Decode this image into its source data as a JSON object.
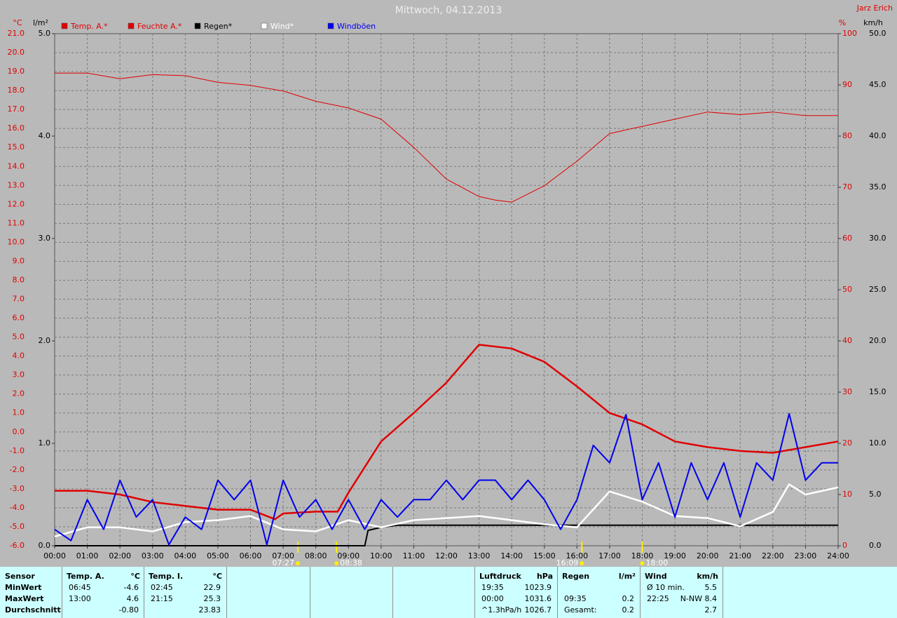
{
  "chart_data": {
    "type": "line",
    "title": "Mittwoch, 04.12.2013",
    "author": "Jarz Erich",
    "y_label": "°C",
    "y2_label": "l/m²",
    "y3_label": "%",
    "y4_label": "km/h",
    "grid": true,
    "xlim": [
      0,
      24
    ],
    "xticks": [
      {
        "value": 0,
        "label": "00:00"
      },
      {
        "value": 1,
        "label": "01:00"
      },
      {
        "value": 2,
        "label": "02:00"
      },
      {
        "value": 3,
        "label": "03:00"
      },
      {
        "value": 4,
        "label": "04:00"
      },
      {
        "value": 5,
        "label": "05:00"
      },
      {
        "value": 6,
        "label": "06:00"
      },
      {
        "value": 7,
        "label": "07:00"
      },
      {
        "value": 8,
        "label": "08:00"
      },
      {
        "value": 9,
        "label": "09:00"
      },
      {
        "value": 10,
        "label": "10:00"
      },
      {
        "value": 11,
        "label": "11:00"
      },
      {
        "value": 12,
        "label": "12:00"
      },
      {
        "value": 13,
        "label": "13:00"
      },
      {
        "value": 14,
        "label": "14:00"
      },
      {
        "value": 15,
        "label": "15:00"
      },
      {
        "value": 16,
        "label": "16:00"
      },
      {
        "value": 17,
        "label": "17:00"
      },
      {
        "value": 18,
        "label": "18:00"
      },
      {
        "value": 19,
        "label": "19:00"
      },
      {
        "value": 20,
        "label": "20:00"
      },
      {
        "value": 21,
        "label": "21:00"
      },
      {
        "value": 22,
        "label": "22:00"
      },
      {
        "value": 23,
        "label": "23:00"
      },
      {
        "value": 24,
        "label": "24:00"
      }
    ],
    "ylim": [
      -6,
      21
    ],
    "yticks": [
      {
        "value": -6,
        "label": "-6.0"
      },
      {
        "value": -5,
        "label": "-5.0"
      },
      {
        "value": -4,
        "label": "-4.0"
      },
      {
        "value": -3,
        "label": "-3.0"
      },
      {
        "value": -2,
        "label": "-2.0"
      },
      {
        "value": -1,
        "label": "-1.0"
      },
      {
        "value": 0,
        "label": "0.0"
      },
      {
        "value": 1,
        "label": "1.0"
      },
      {
        "value": 2,
        "label": "2.0"
      },
      {
        "value": 3,
        "label": "3.0"
      },
      {
        "value": 4,
        "label": "4.0"
      },
      {
        "value": 5,
        "label": "5.0"
      },
      {
        "value": 6,
        "label": "6.0"
      },
      {
        "value": 7,
        "label": "7.0"
      },
      {
        "value": 8,
        "label": "8.0"
      },
      {
        "value": 9,
        "label": "9.0"
      },
      {
        "value": 10,
        "label": "10.0"
      },
      {
        "value": 11,
        "label": "11.0"
      },
      {
        "value": 12,
        "label": "12.0"
      },
      {
        "value": 13,
        "label": "13.0"
      },
      {
        "value": 14,
        "label": "14.0"
      },
      {
        "value": 15,
        "label": "15.0"
      },
      {
        "value": 16,
        "label": "16.0"
      },
      {
        "value": 17,
        "label": "17.0"
      },
      {
        "value": 18,
        "label": "18.0"
      },
      {
        "value": 19,
        "label": "19.0"
      },
      {
        "value": 20,
        "label": "20.0"
      },
      {
        "value": 21,
        "label": "21.0"
      }
    ],
    "y2lim": [
      0,
      5
    ],
    "y2ticks": [
      {
        "value": 0,
        "label": "0.0"
      },
      {
        "value": 1,
        "label": "1.0"
      },
      {
        "value": 2,
        "label": "2.0"
      },
      {
        "value": 3,
        "label": "3.0"
      },
      {
        "value": 4,
        "label": "4.0"
      },
      {
        "value": 5,
        "label": "5.0"
      }
    ],
    "y3lim": [
      0,
      100
    ],
    "y3ticks": [
      0,
      10,
      20,
      30,
      40,
      50,
      60,
      70,
      80,
      90,
      100
    ],
    "y4lim": [
      0,
      50
    ],
    "y4ticks": [
      {
        "value": 0,
        "label": "0.0"
      },
      {
        "value": 5,
        "label": "5.0"
      },
      {
        "value": 10,
        "label": "10.0"
      },
      {
        "value": 15,
        "label": "15.0"
      },
      {
        "value": 20,
        "label": "20.0"
      },
      {
        "value": 25,
        "label": "25.0"
      },
      {
        "value": 30,
        "label": "30.0"
      },
      {
        "value": 35,
        "label": "35.0"
      },
      {
        "value": 40,
        "label": "40.0"
      },
      {
        "value": 45,
        "label": "45.0"
      },
      {
        "value": 50,
        "label": "50.0"
      }
    ],
    "series": [
      {
        "name": "Temp. A.*",
        "color": "#e00000",
        "axis": "y",
        "x": [
          0,
          1,
          2,
          3,
          4,
          5,
          6,
          6.75,
          7,
          8,
          8.67,
          9,
          10,
          11,
          12,
          13,
          14,
          15,
          16,
          17,
          18,
          19,
          20,
          21,
          22,
          23,
          24
        ],
        "values": [
          -3.1,
          -3.1,
          -3.3,
          -3.7,
          -3.9,
          -4.1,
          -4.1,
          -4.6,
          -4.3,
          -4.2,
          -4.2,
          -3.2,
          -0.5,
          1.0,
          2.6,
          4.6,
          4.4,
          3.7,
          2.4,
          1.0,
          0.4,
          -0.5,
          -0.8,
          -1.0,
          -1.1,
          -0.8,
          -0.5
        ]
      },
      {
        "name": "Feuchte A.*",
        "color": "#e00000",
        "axis": "y3",
        "x": [
          0,
          1,
          2,
          3,
          4,
          5,
          6,
          7,
          8,
          9,
          10,
          11,
          12,
          13,
          13.5,
          14,
          15,
          16,
          17,
          18,
          19,
          20,
          21,
          22,
          23,
          24
        ],
        "values": [
          92.3,
          92.3,
          91.2,
          92,
          91.8,
          90.5,
          89.9,
          88.8,
          86.8,
          85.5,
          83.3,
          77.8,
          71.6,
          68.2,
          67.5,
          67.1,
          70.3,
          75.1,
          80.5,
          81.9,
          83.3,
          84.7,
          84.2,
          84.7,
          84,
          84
        ]
      },
      {
        "name": "Regen*",
        "color": "#000000",
        "axis": "y2",
        "x": [
          0,
          9.5,
          9.6,
          10,
          10.5,
          24
        ],
        "values": [
          0,
          0,
          0.15,
          0.18,
          0.2,
          0.2
        ]
      },
      {
        "name": "Wind*",
        "color": "#ffffff",
        "axis": "y4",
        "x": [
          0,
          1,
          2,
          3,
          4,
          5,
          6,
          7,
          8,
          9,
          10,
          11,
          12,
          13,
          14,
          15,
          16,
          17,
          18,
          19,
          20,
          21,
          22,
          22.5,
          23,
          24
        ],
        "values": [
          0.9,
          1.8,
          1.8,
          1.4,
          2.3,
          2.5,
          2.9,
          1.6,
          1.4,
          2.5,
          1.8,
          2.5,
          2.7,
          2.9,
          2.5,
          2.1,
          1.8,
          5.3,
          4.3,
          2.9,
          2.7,
          1.9,
          3.3,
          6.0,
          5.0,
          5.7
        ]
      },
      {
        "name": "Windböen",
        "color": "#0000ee",
        "axis": "y4",
        "x": [
          0,
          0.5,
          1,
          1.5,
          2,
          2.5,
          3,
          3.5,
          4,
          4.5,
          5,
          5.5,
          6,
          6.5,
          7,
          7.5,
          8,
          8.5,
          9,
          9.5,
          10,
          10.5,
          11,
          11.5,
          12,
          12.5,
          13,
          13.5,
          14,
          14.5,
          15,
          15.5,
          16,
          16.5,
          17,
          17.5,
          18,
          18.5,
          19,
          19.5,
          20,
          20.5,
          21,
          21.5,
          22,
          22.5,
          23,
          23.5,
          24
        ],
        "values": [
          1.6,
          0.5,
          4.5,
          1.6,
          6.4,
          2.8,
          4.5,
          0.1,
          2.8,
          1.6,
          6.4,
          4.5,
          6.4,
          0.1,
          6.4,
          2.8,
          4.5,
          1.6,
          4.5,
          1.6,
          4.5,
          2.8,
          4.5,
          4.5,
          6.4,
          4.5,
          6.4,
          6.4,
          4.5,
          6.4,
          4.5,
          1.6,
          4.5,
          9.8,
          8.1,
          12.8,
          4.5,
          8.1,
          2.8,
          8.1,
          4.5,
          8.1,
          2.8,
          8.1,
          6.4,
          12.9,
          6.4,
          8.1,
          8.1
        ]
      }
    ],
    "annotations": [
      {
        "label": "07:27",
        "x": 7.45
      },
      {
        "label": "08:38",
        "x": 8.633
      },
      {
        "label": "16:09",
        "x": 16.15
      },
      {
        "label": "18:00",
        "x": 18
      }
    ]
  },
  "stats": {
    "row_labels": [
      "Sensor",
      "MinWert",
      "MaxWert",
      "Durchschnitt"
    ],
    "blocks": [
      {
        "title": "Temp. A.",
        "unit": "°C",
        "rows": [
          [
            "06:45",
            "-4.6"
          ],
          [
            "13:00",
            "4.6"
          ],
          [
            "-0.80"
          ]
        ]
      },
      {
        "title": "Temp. I.",
        "unit": "°C",
        "rows": [
          [
            "02:45",
            "22.9"
          ],
          [
            "21:15",
            "25.3"
          ],
          [
            "23.83"
          ]
        ]
      },
      {
        "title": "Luftdruck",
        "unit": "hPa",
        "rows": [
          [
            "19:35",
            "1023.9"
          ],
          [
            "00:00",
            "1031.6"
          ],
          [
            "^1.3hPa/h",
            "1026.7"
          ]
        ]
      },
      {
        "title": "Regen",
        "unit": "l/m²",
        "rows": [
          null,
          [
            "09:35",
            "0.2"
          ],
          [
            "Gesamt:",
            "0.2"
          ]
        ]
      },
      {
        "title": "Wind",
        "unit": "km/h",
        "rows": [
          [
            "Ø 10 min.",
            "5.5"
          ],
          [
            "22:25",
            "N-NW 8.4"
          ],
          [
            "2.7"
          ]
        ]
      }
    ]
  }
}
